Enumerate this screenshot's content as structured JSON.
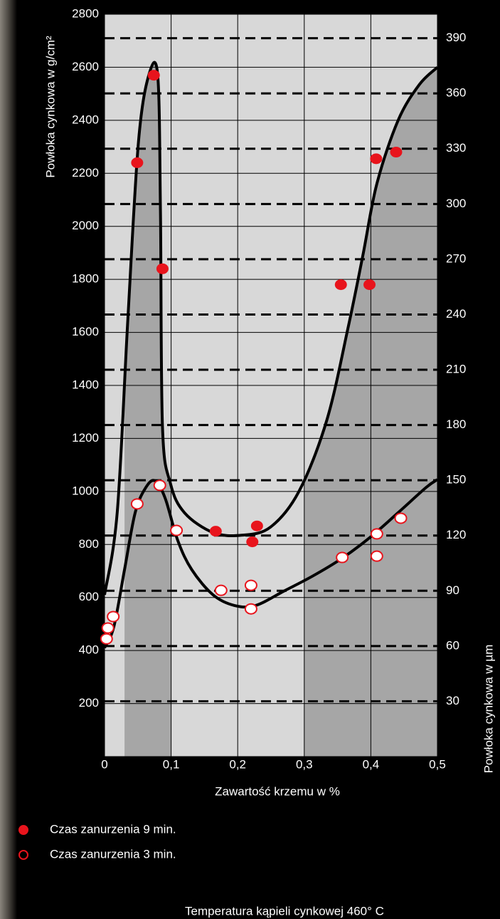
{
  "chart_data": {
    "type": "scatter",
    "xlabel": "Zawartość krzemu w %",
    "ylabel": "Powłoka cynkowa w g/cm²",
    "y2label": "Powłoka cynkowa w µm",
    "note": "Temperatura kąpieli cynkowej 460° C",
    "xlim": [
      0,
      0.5
    ],
    "xticks": [
      0,
      {
        "value": 0.1,
        "label": "0,1"
      },
      {
        "value": 0.2,
        "label": "0,2"
      },
      {
        "value": 0.3,
        "label": "0,3"
      },
      {
        "value": 0.4,
        "label": "0,4"
      },
      {
        "value": 0.5,
        "label": "0,5"
      }
    ],
    "ylim": [
      0,
      2800
    ],
    "yticks": [
      200,
      400,
      600,
      800,
      1000,
      1200,
      1400,
      1600,
      1800,
      2000,
      2200,
      2400,
      2600,
      2800
    ],
    "y2lim": [
      0,
      403
    ],
    "y2ticks": [
      30,
      60,
      90,
      120,
      150,
      180,
      210,
      240,
      270,
      300,
      330,
      360,
      390
    ],
    "shaded_ranges": [
      [
        0.03,
        0.1
      ],
      [
        0.3,
        0.5
      ]
    ],
    "series": [
      {
        "name": "Czas zanurzenia 9 min.",
        "color": "#e8141c",
        "marker": "filled",
        "line_color": "#000000",
        "x": [
          0.049,
          0.074,
          0.087,
          0.167,
          0.229,
          0.222,
          0.355,
          0.398,
          0.408,
          0.438
        ],
        "values": [
          2240,
          2570,
          1840,
          850,
          870,
          810,
          1780,
          1780,
          2255,
          2280
        ],
        "curve_x": [
          0,
          0.019,
          0.035,
          0.051,
          0.067,
          0.08,
          0.084,
          0.087,
          0.099,
          0.12,
          0.163,
          0.206,
          0.249,
          0.292,
          0.334,
          0.366,
          0.388,
          0.409,
          0.441,
          0.473,
          0.5
        ],
        "curve_values": [
          610,
          920,
          1650,
          2320,
          2575,
          2565,
          2050,
          1245,
          1030,
          920,
          845,
          835,
          865,
          1000,
          1270,
          1620,
          1890,
          2160,
          2400,
          2535,
          2600
        ]
      },
      {
        "name": "Czas zanurzenia 3 min.",
        "color": "#e8141c",
        "marker": "open",
        "line_color": "#000000",
        "x": [
          0.003,
          0.005,
          0.013,
          0.049,
          0.083,
          0.108,
          0.175,
          0.22,
          0.22,
          0.357,
          0.409,
          0.409,
          0.445
        ],
        "values": [
          444,
          485,
          528,
          953,
          1023,
          853,
          627,
          646,
          557,
          751,
          840,
          756,
          899
        ],
        "curve_x": [
          0,
          0.014,
          0.03,
          0.046,
          0.062,
          0.076,
          0.091,
          0.11,
          0.131,
          0.163,
          0.195,
          0.227,
          0.27,
          0.312,
          0.355,
          0.398,
          0.441,
          0.483,
          0.5
        ],
        "curve_values": [
          410,
          490,
          705,
          920,
          1015,
          1040,
          975,
          815,
          705,
          610,
          570,
          570,
          625,
          680,
          745,
          825,
          920,
          1015,
          1045
        ]
      }
    ]
  }
}
